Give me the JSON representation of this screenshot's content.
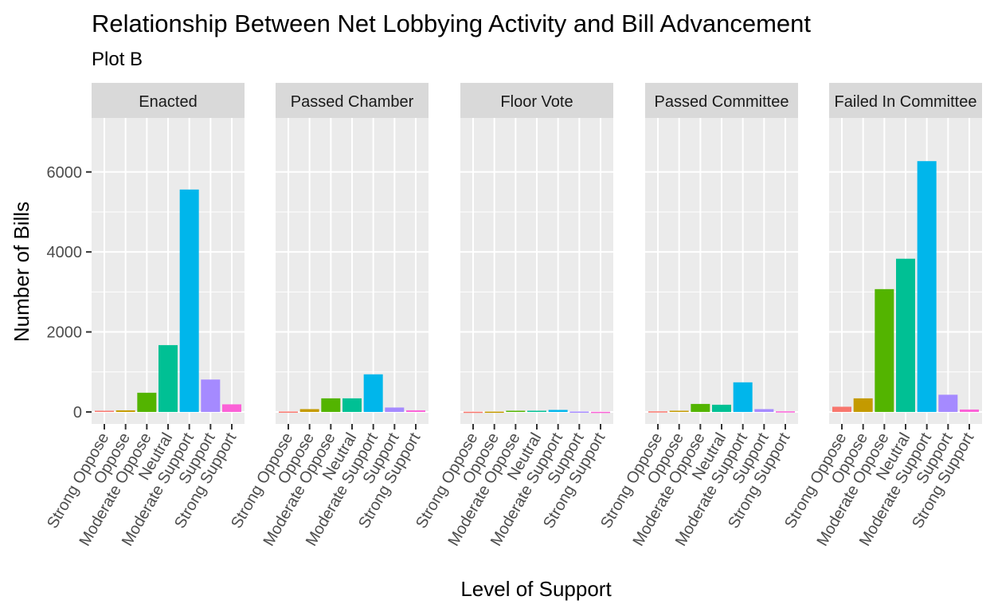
{
  "chart_data": {
    "type": "bar",
    "title": "Relationship Between Net Lobbying Activity and Bill Advancement",
    "subtitle": "Plot B",
    "xlabel": "Level of Support",
    "ylabel": "Number of Bills",
    "ylim": [
      -300,
      7350
    ],
    "y_ticks": [
      0,
      2000,
      4000,
      6000
    ],
    "y_tick_labels": [
      "0",
      "2000",
      "4000",
      "6000"
    ],
    "categories": [
      "Strong Oppose",
      "Oppose",
      "Moderate Oppose",
      "Neutral",
      "Moderate Support",
      "Support",
      "Strong Support"
    ],
    "category_colors": [
      "#F8766D",
      "#C49A00",
      "#53B400",
      "#00C094",
      "#00B6EB",
      "#A58AFF",
      "#FB61D7"
    ],
    "grid": true,
    "legend": "none",
    "facets": [
      {
        "label": "Enacted",
        "values": [
          30,
          40,
          480,
          1670,
          5560,
          810,
          190
        ]
      },
      {
        "label": "Passed Chamber",
        "values": [
          10,
          70,
          340,
          340,
          940,
          110,
          40
        ]
      },
      {
        "label": "Floor Vote",
        "values": [
          5,
          8,
          30,
          30,
          50,
          10,
          3
        ]
      },
      {
        "label": "Passed Committee",
        "values": [
          15,
          30,
          200,
          180,
          740,
          70,
          15
        ]
      },
      {
        "label": "Failed In Committee",
        "values": [
          130,
          340,
          3070,
          3830,
          6270,
          430,
          60
        ]
      }
    ]
  }
}
